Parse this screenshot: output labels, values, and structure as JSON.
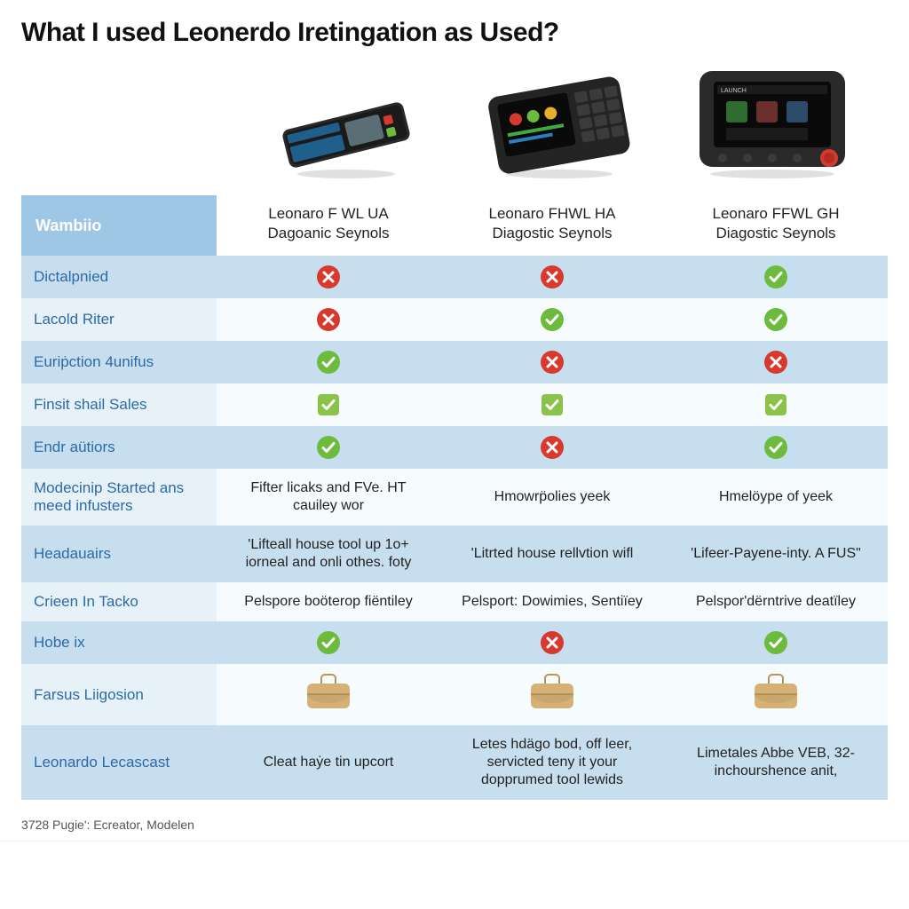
{
  "title": "What I used Leonerdo Iretingation as Used?",
  "colors": {
    "header_band": "#9ec7e6",
    "row_even": "#c7deef",
    "row_odd_label": "#e7f1f8",
    "row_odd_cell": "#f6fbfd",
    "check_green": "#6cbb3c",
    "check_square": "#8bc34a",
    "x_red": "#d63a2f",
    "bag_fill": "#d4b275",
    "link_blue": "#2b6aa8"
  },
  "columns": [
    {
      "line1_a": "Leonaro",
      "line1_b": "F WL",
      "line1_c": "UA",
      "line2": "Dagoanic Seynols"
    },
    {
      "line1_a": "Leonaro",
      "line1_b": "FHWL",
      "line1_c": "HA",
      "line2": "Diagostic Seynols"
    },
    {
      "line1_a": "Leonaro",
      "line1_b": "FFWL",
      "line1_c": "GH",
      "line2": "Diagostic Seynols"
    }
  ],
  "feature_header": "Wambiio",
  "rows": [
    {
      "label": "Dictalpnied",
      "cells": [
        "x",
        "x",
        "check"
      ]
    },
    {
      "label": "Lacold Riter",
      "cells": [
        "x",
        "check",
        "check"
      ]
    },
    {
      "label": "Euriṗction 4unifus",
      "cells": [
        "check",
        "x",
        "x"
      ]
    },
    {
      "label": "Finsit shail Sales",
      "cells": [
        "check-sq",
        "check-sq",
        "check-sq"
      ]
    },
    {
      "label": "Endr aütiors",
      "cells": [
        "check",
        "x",
        "check"
      ]
    },
    {
      "label": "Modecinip Started ans meed infusters",
      "cells": [
        "Fifter licaks and FVe. HT cauiley wor",
        "Hmowrp̈olies yeek",
        "Hmelöype of yeek"
      ],
      "text": true,
      "tall": true
    },
    {
      "label": "Headauairs",
      "cells": [
        "'Lifteall house tool up 1o+ iorneal and onli othes. foty",
        "'Litrted house rellvtion wifl",
        "'Lifeer-Payene-inty. A FUS\""
      ],
      "text": true,
      "tall": true
    },
    {
      "label": "Crieen In Tacko",
      "cells": [
        "Pelspore boöterop fiëntiley",
        "Pelsport: Dowimies, Sentiïey",
        "Pelspor'dërntrive deatïley"
      ],
      "text": true,
      "tall": true
    },
    {
      "label": "Hobe ix",
      "cells": [
        "check",
        "x",
        "check"
      ]
    },
    {
      "label": "Farsus Liigosion",
      "cells": [
        "bag",
        "bag",
        "bag"
      ]
    },
    {
      "label": "Leonardo Lecascast",
      "cells": [
        "Cleat haẏe tin upcort",
        "Letes hdägo bod, off leer, servicted teny it your dopprumed tool lewids",
        "Limetales Abbe VEB, 32- inchourshence anit,"
      ],
      "text": true,
      "tall": true
    }
  ],
  "footer": "37̈28 Pugie': Ecreator, Modelen"
}
